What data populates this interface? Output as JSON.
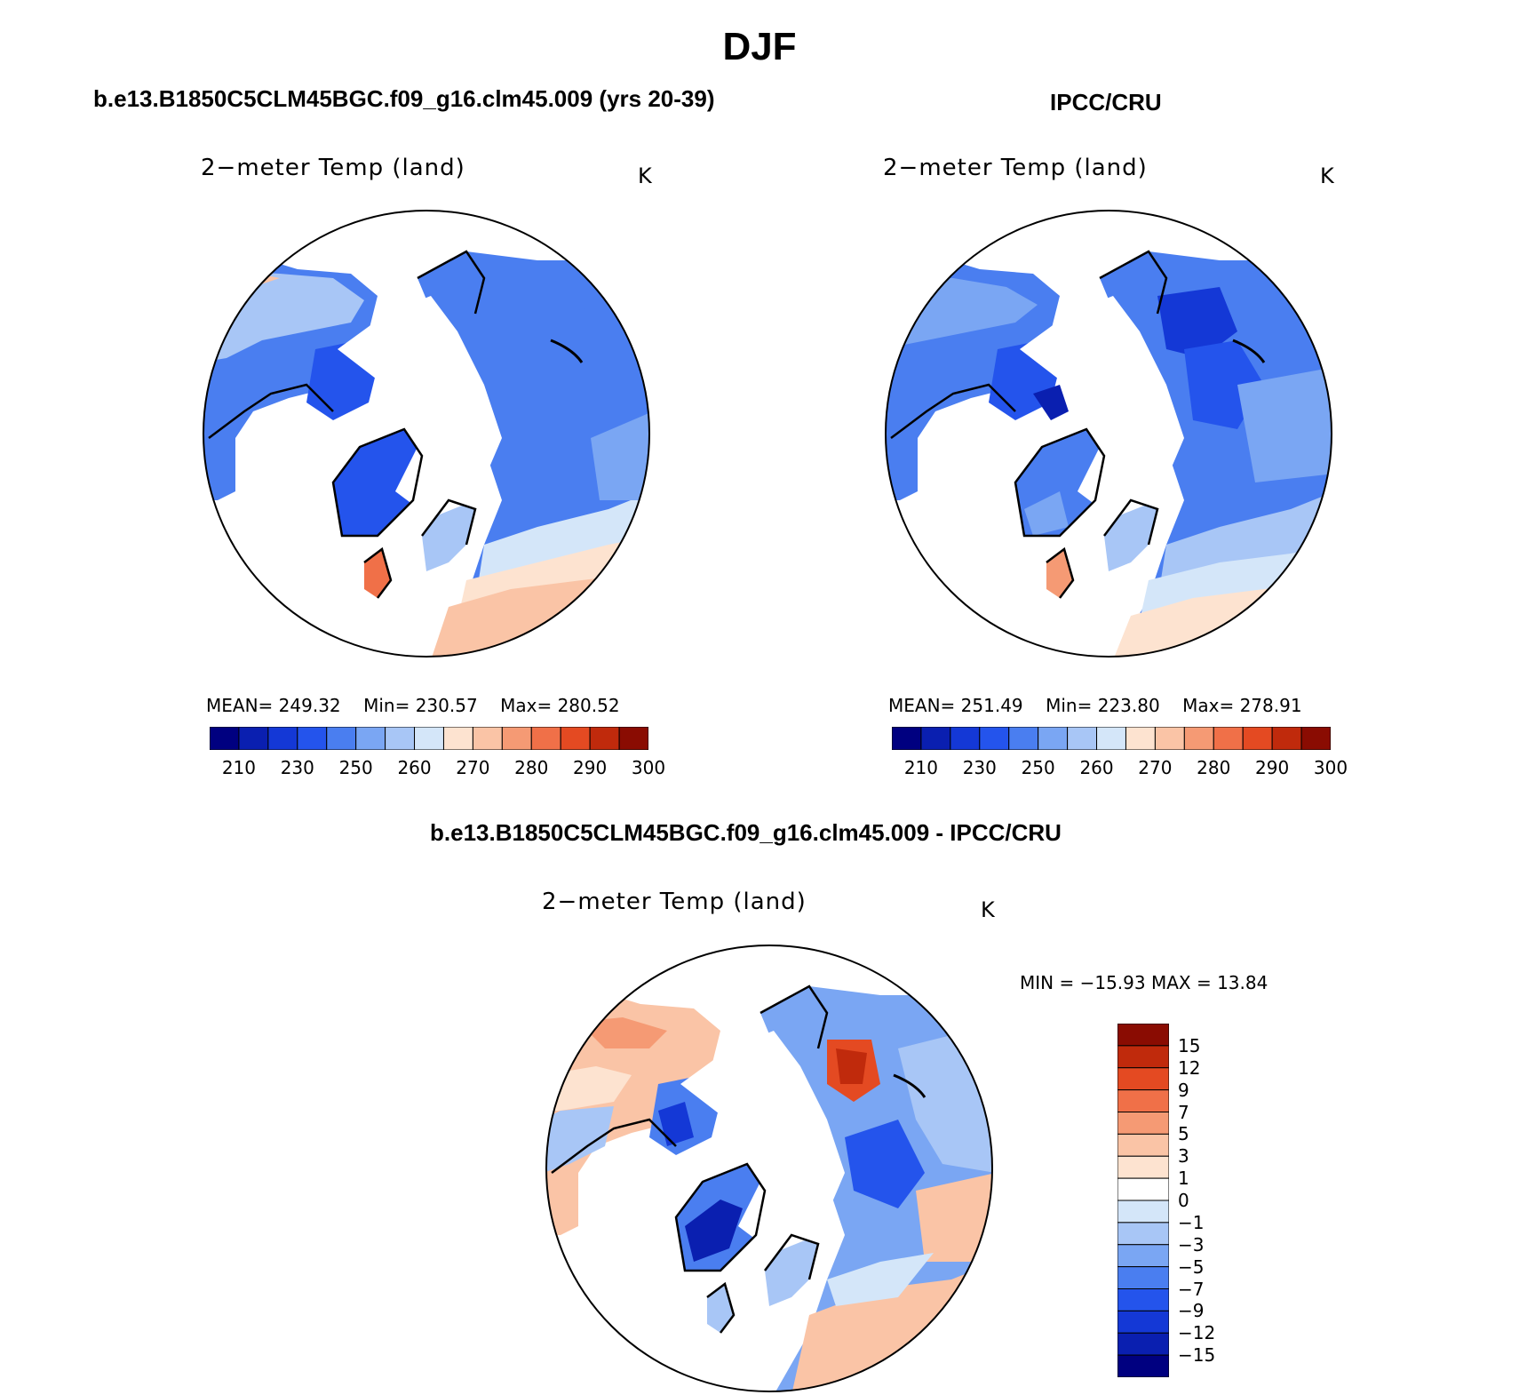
{
  "title": "DJF",
  "colorbar_colors": [
    "#000080",
    "#0a1fb0",
    "#1438d6",
    "#2454ec",
    "#4a7ef0",
    "#7aa6f3",
    "#a8c6f6",
    "#d4e6f9",
    "#fde3d0",
    "#fac4a6",
    "#f59a74",
    "#f07048",
    "#e44a22",
    "#c02a0c",
    "#8a0c02"
  ],
  "panels": {
    "model": {
      "header": "b.e13.B1850C5CLM45BGC.f09_g16.clm45.009 (yrs 20-39)",
      "label": "2−meter Temp (land)",
      "units": "K",
      "stats": {
        "mean_label": "MEAN=",
        "mean": "249.32",
        "min_label": "Min=",
        "min": "230.57",
        "max_label": "Max=",
        "max": "280.52"
      },
      "ticks": [
        "210",
        "230",
        "250",
        "260",
        "270",
        "280",
        "290",
        "300"
      ]
    },
    "obs": {
      "header": "IPCC/CRU",
      "label": "2−meter Temp (land)",
      "units": "K",
      "stats": {
        "mean_label": "MEAN=",
        "mean": "251.49",
        "min_label": "Min=",
        "min": "223.80",
        "max_label": "Max=",
        "max": "278.91"
      },
      "ticks": [
        "210",
        "230",
        "250",
        "260",
        "270",
        "280",
        "290",
        "300"
      ]
    },
    "diff": {
      "header": "b.e13.B1850C5CLM45BGC.f09_g16.clm45.009 - IPCC/CRU",
      "label": "2−meter Temp (land)",
      "units": "K",
      "minmax": "MIN = −15.93 MAX =   13.84",
      "ticks": [
        "15",
        "12",
        "9",
        "7",
        "5",
        "3",
        "1",
        "0",
        "−1",
        "−3",
        "−5",
        "−7",
        "−9",
        "−12",
        "−15"
      ]
    }
  }
}
